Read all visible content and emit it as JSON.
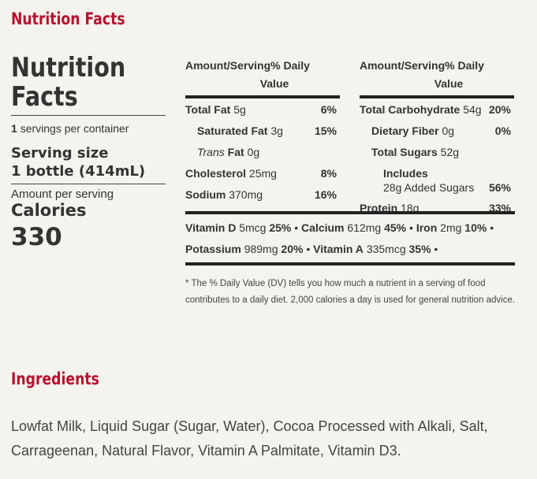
{
  "headings": {
    "nutrition_facts": "Nutrition Facts",
    "ingredients": "Ingredients"
  },
  "label": {
    "title_line1": "Nutrition",
    "title_line2": "Facts",
    "servings_count": "1",
    "servings_text": "servings per container",
    "serving_size_label": "Serving size",
    "serving_size_value": "1 bottle (414mL)",
    "amount_per_serving": "Amount per serving",
    "calories_label": "Calories",
    "calories_value": "330"
  },
  "column_header": {
    "left": "Amount/Serving",
    "right_line1": "% Daily",
    "right_line2": "Value"
  },
  "nutrients_left": [
    {
      "name": "Total Fat",
      "amount": "5g",
      "pct": "6%"
    },
    {
      "name": "Saturated Fat",
      "amount": "3g",
      "pct": "15%"
    },
    {
      "name_italic": "Trans",
      "name": "Fat",
      "amount": "0g",
      "pct": ""
    },
    {
      "name": "Cholesterol",
      "amount": "25mg",
      "pct": "8%"
    },
    {
      "name": "Sodium",
      "amount": "370mg",
      "pct": "16%"
    }
  ],
  "nutrients_right": [
    {
      "name": "Total Carbohydrate",
      "amount": "54g",
      "pct": "20%"
    },
    {
      "name": "Dietary Fiber",
      "amount": "0g",
      "pct": "0%"
    },
    {
      "name": "Total Sugars",
      "amount": "52g",
      "pct": ""
    },
    {
      "name": "Includes",
      "amount": "28g Added Sugars",
      "pct": "56%"
    },
    {
      "name": "Protein",
      "amount": "18g",
      "pct": "33%"
    }
  ],
  "vitamins": [
    {
      "name": "Vitamin D",
      "amount": "5mcg",
      "pct": "25%"
    },
    {
      "name": "Calcium",
      "amount": "612mg",
      "pct": "45%"
    },
    {
      "name": "Iron",
      "amount": "2mg",
      "pct": "10%"
    },
    {
      "name": "Potassium",
      "amount": "989mg",
      "pct": "20%"
    },
    {
      "name": "Vitamin A",
      "amount": "335mcg",
      "pct": "35%"
    }
  ],
  "footnote": "* The % Daily Value (DV) tells you how much a nutrient in a serving of food contributes to a daily diet. 2,000 calories a day is used for general nutrition advice.",
  "ingredients_text": "Lowfat Milk, Liquid Sugar (Sugar, Water), Cocoa Processed with Alkali, Salt, Carrageenan, Natural Flavor, Vitamin A Palmitate, Vitamin D3.",
  "colors": {
    "accent": "#b5122e",
    "text": "#333333",
    "background": "#f5f3ee"
  }
}
